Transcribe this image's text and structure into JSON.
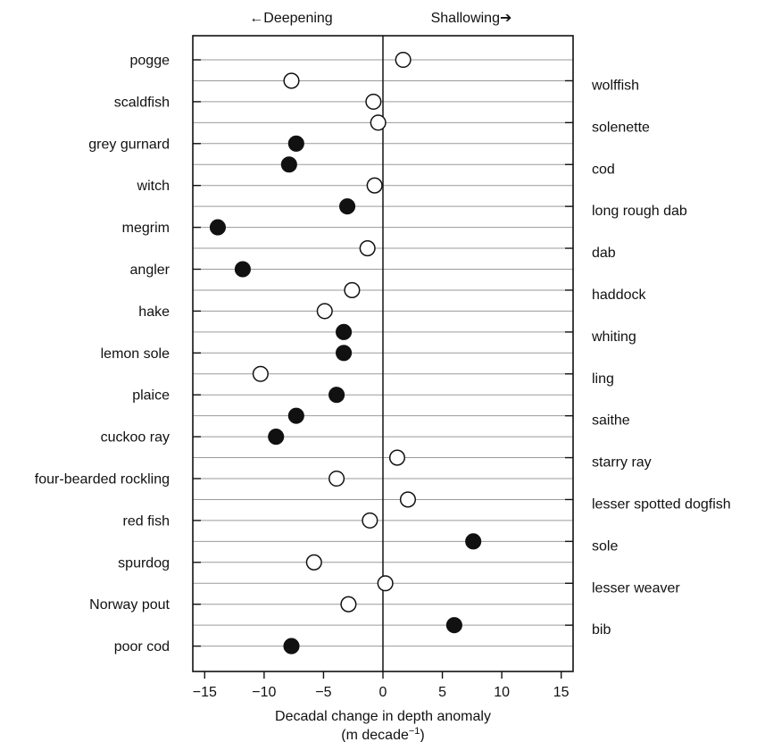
{
  "chart_data": {
    "type": "scatter",
    "direction_labels": {
      "left": "←Deepening",
      "right": "Shallowing➔"
    },
    "xlabel_line1": "Decadal change in depth anomaly",
    "xlabel_line2": "(m decade",
    "xlabel_sup": "−1",
    "xlabel_close": ")",
    "xlim": [
      -16,
      16
    ],
    "xticks": [
      -15,
      -10,
      -5,
      0,
      5,
      10,
      15
    ],
    "xtick_labels": [
      "−15",
      "−10",
      "−5",
      "0",
      "5",
      "10",
      "15"
    ],
    "marker_legend": {
      "filled": "#111111",
      "open": "#ffffff"
    },
    "species": [
      {
        "name": "pogge",
        "side": "left",
        "value": 1.7,
        "filled": false
      },
      {
        "name": "wolffish",
        "side": "right",
        "value": -7.7,
        "filled": false
      },
      {
        "name": "scaldfish",
        "side": "left",
        "value": -0.8,
        "filled": false
      },
      {
        "name": "solenette",
        "side": "right",
        "value": -0.4,
        "filled": false
      },
      {
        "name": "grey gurnard",
        "side": "left",
        "value": -7.3,
        "filled": true
      },
      {
        "name": "cod",
        "side": "right",
        "value": -7.9,
        "filled": true
      },
      {
        "name": "witch",
        "side": "left",
        "value": -0.7,
        "filled": false
      },
      {
        "name": "long rough dab",
        "side": "right",
        "value": -3.0,
        "filled": true
      },
      {
        "name": "megrim",
        "side": "left",
        "value": -13.9,
        "filled": true
      },
      {
        "name": "dab",
        "side": "right",
        "value": -1.3,
        "filled": false
      },
      {
        "name": "angler",
        "side": "left",
        "value": -11.8,
        "filled": true
      },
      {
        "name": "haddock",
        "side": "right",
        "value": -2.6,
        "filled": false
      },
      {
        "name": "hake",
        "side": "left",
        "value": -4.9,
        "filled": false
      },
      {
        "name": "whiting",
        "side": "right",
        "value": -3.3,
        "filled": true
      },
      {
        "name": "lemon sole",
        "side": "left",
        "value": -3.3,
        "filled": true
      },
      {
        "name": "ling",
        "side": "right",
        "value": -10.3,
        "filled": false
      },
      {
        "name": "plaice",
        "side": "left",
        "value": -3.9,
        "filled": true
      },
      {
        "name": "saithe",
        "side": "right",
        "value": -7.3,
        "filled": true
      },
      {
        "name": "cuckoo ray",
        "side": "left",
        "value": -9.0,
        "filled": true
      },
      {
        "name": "starry ray",
        "side": "right",
        "value": 1.2,
        "filled": false
      },
      {
        "name": "four-bearded rockling",
        "side": "left",
        "value": -3.9,
        "filled": false
      },
      {
        "name": "lesser spotted dogfish",
        "side": "right",
        "value": 2.1,
        "filled": false
      },
      {
        "name": "red fish",
        "side": "left",
        "value": -1.1,
        "filled": false
      },
      {
        "name": "sole",
        "side": "right",
        "value": 7.6,
        "filled": true
      },
      {
        "name": "spurdog",
        "side": "left",
        "value": -5.8,
        "filled": false
      },
      {
        "name": "lesser weaver",
        "side": "right",
        "value": 0.2,
        "filled": false
      },
      {
        "name": "Norway pout",
        "side": "left",
        "value": -2.9,
        "filled": false
      },
      {
        "name": "bib",
        "side": "right",
        "value": 6.0,
        "filled": true
      },
      {
        "name": "poor cod",
        "side": "left",
        "value": -7.7,
        "filled": true
      }
    ]
  }
}
